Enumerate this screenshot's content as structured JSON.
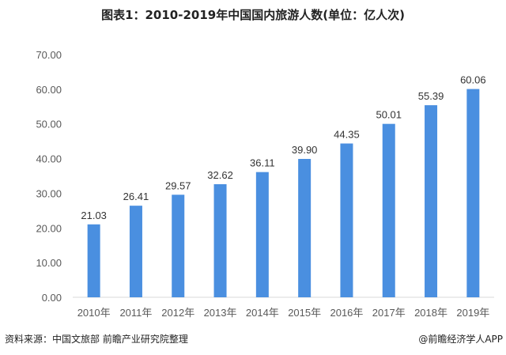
{
  "chart_data": {
    "type": "bar",
    "title": "图表1：2010-2019年中国国内旅游人数(单位：亿人次)",
    "categories": [
      "2010年",
      "2011年",
      "2012年",
      "2013年",
      "2014年",
      "2015年",
      "2016年",
      "2017年",
      "2018年",
      "2019年"
    ],
    "values": [
      21.03,
      26.41,
      29.57,
      32.62,
      36.11,
      39.9,
      44.35,
      50.01,
      55.39,
      60.06
    ],
    "value_labels": [
      "21.03",
      "26.41",
      "29.57",
      "32.62",
      "36.11",
      "39.90",
      "44.35",
      "50.01",
      "55.39",
      "60.06"
    ],
    "yticks": [
      "0.00",
      "10.00",
      "20.00",
      "30.00",
      "40.00",
      "50.00",
      "60.00",
      "70.00"
    ],
    "ylim": [
      0,
      70
    ],
    "xlabel": "",
    "ylabel": "",
    "bar_color": "#4a8fe0",
    "grid": false
  },
  "footer": {
    "source": "资料来源：中国文旅部 前瞻产业研究院整理",
    "credit": "@前瞻经济学人APP"
  }
}
